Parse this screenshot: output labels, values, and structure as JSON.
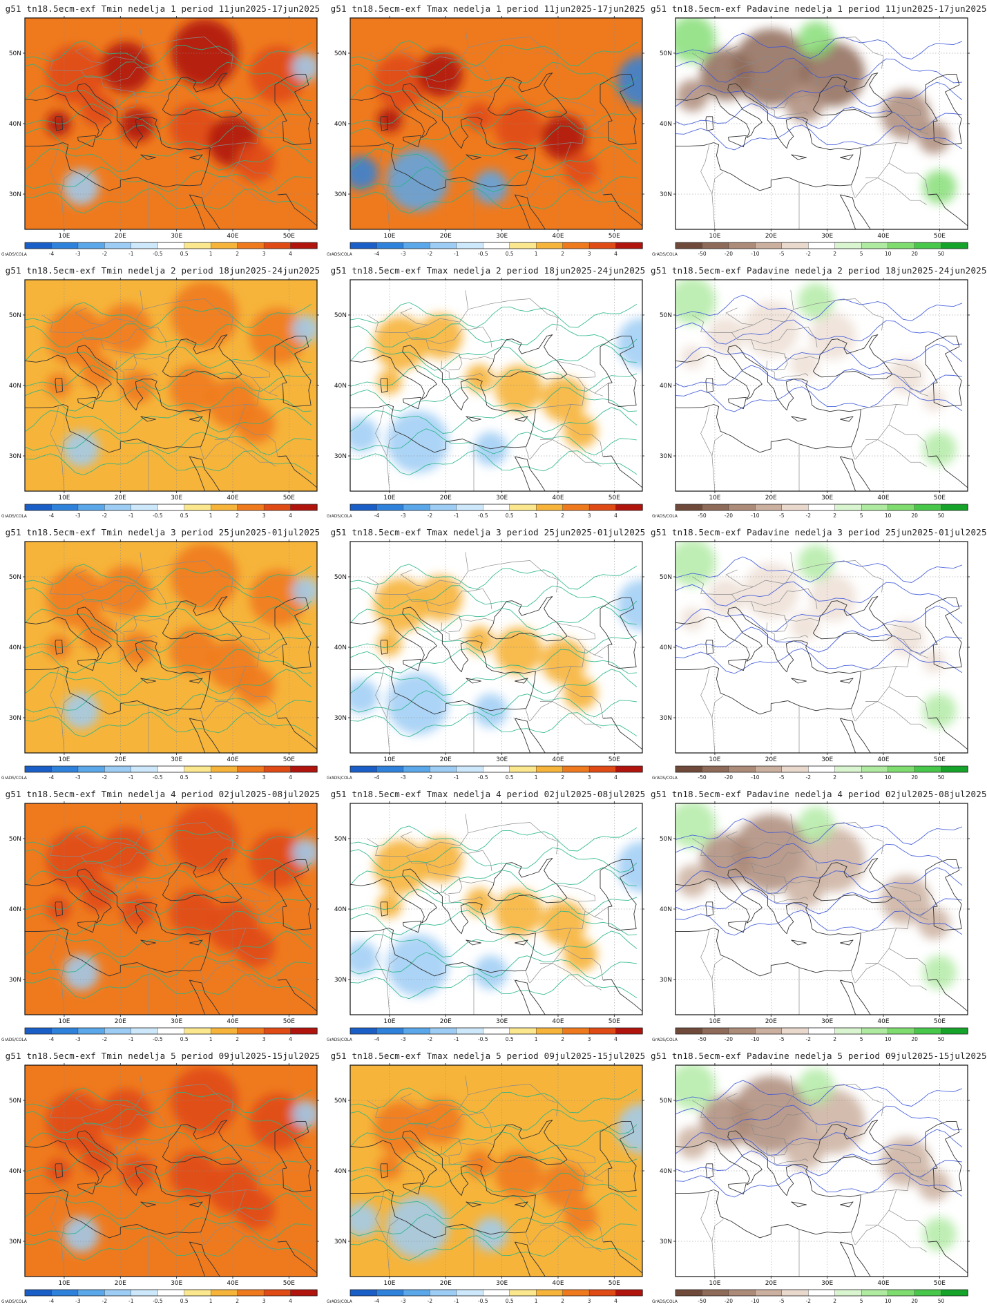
{
  "figure": {
    "colorbar_credit": "GrADS/COLA",
    "lon_ticks": [
      "10E",
      "20E",
      "30E",
      "40E",
      "50E"
    ],
    "lat_ticks": [
      "50N",
      "40N",
      "30N"
    ],
    "temp_scale": {
      "labels": [
        "-4",
        "-3",
        "-2",
        "-1",
        "-0.5",
        "0.5",
        "1",
        "2",
        "3",
        "4"
      ],
      "colors": [
        "#1a5fc8",
        "#2f82dc",
        "#5aa7ea",
        "#9dcdf4",
        "#cde8fb",
        "#ffffff",
        "#fbe78e",
        "#f6b43b",
        "#ef7a1e",
        "#e04a14",
        "#b0140c"
      ]
    },
    "precip_scale": {
      "labels": [
        "-50",
        "-20",
        "-10",
        "-5",
        "-2",
        "2",
        "5",
        "10",
        "20",
        "50"
      ],
      "colors": [
        "#6f4a3a",
        "#8e6a58",
        "#ad8b79",
        "#cbb0a0",
        "#e9d9cd",
        "#ffffff",
        "#d9f5cf",
        "#aeeaa0",
        "#7fdc6f",
        "#48c84a",
        "#16a32a"
      ]
    }
  },
  "panels": [
    {
      "title": "g51 tn18.5ecm-exf Tmin nedelja 1 period 11jun2025-17jun2025",
      "kind": "tmin",
      "level": 3
    },
    {
      "title": "g51 tn18.5ecm-exf Tmax nedelja 1 period 11jun2025-17jun2025",
      "kind": "tmax",
      "level": 3
    },
    {
      "title": "g51 tn18.5ecm-exf Padavine nedelja 1 period 11jun2025-17jun2025",
      "kind": "precip",
      "level": -3
    },
    {
      "title": "g51 tn18.5ecm-exf Tmin nedelja 2 period 18jun2025-24jun2025",
      "kind": "tmin",
      "level": 1
    },
    {
      "title": "g51 tn18.5ecm-exf Tmax nedelja 2 period 18jun2025-24jun2025",
      "kind": "tmax",
      "level": 0
    },
    {
      "title": "g51 tn18.5ecm-exf Padavine nedelja 2 period 18jun2025-24jun2025",
      "kind": "precip",
      "level": -1
    },
    {
      "title": "g51 tn18.5ecm-exf Tmin nedelja 3 period 25jun2025-01jul2025",
      "kind": "tmin",
      "level": 1
    },
    {
      "title": "g51 tn18.5ecm-exf Tmax nedelja 3 period 25jun2025-01jul2025",
      "kind": "tmax",
      "level": 0
    },
    {
      "title": "g51 tn18.5ecm-exf Padavine nedelja 3 period 25jun2025-01jul2025",
      "kind": "precip",
      "level": -1
    },
    {
      "title": "g51 tn18.5ecm-exf Tmin nedelja 4 period 02jul2025-08jul2025",
      "kind": "tmin",
      "level": 2
    },
    {
      "title": "g51 tn18.5ecm-exf Tmax nedelja 4 period 02jul2025-08jul2025",
      "kind": "tmax",
      "level": 0
    },
    {
      "title": "g51 tn18.5ecm-exf Padavine nedelja 4 period 02jul2025-08jul2025",
      "kind": "precip",
      "level": -2
    },
    {
      "title": "g51 tn18.5ecm-exf Tmin nedelja 5 period 09jul2025-15jul2025",
      "kind": "tmin",
      "level": 2
    },
    {
      "title": "g51 tn18.5ecm-exf Tmax nedelja 5 period 09jul2025-15jul2025",
      "kind": "tmax",
      "level": 1
    },
    {
      "title": "g51 tn18.5ecm-exf Padavine nedelja 5 period 09jul2025-15jul2025",
      "kind": "precip",
      "level": -2
    }
  ]
}
